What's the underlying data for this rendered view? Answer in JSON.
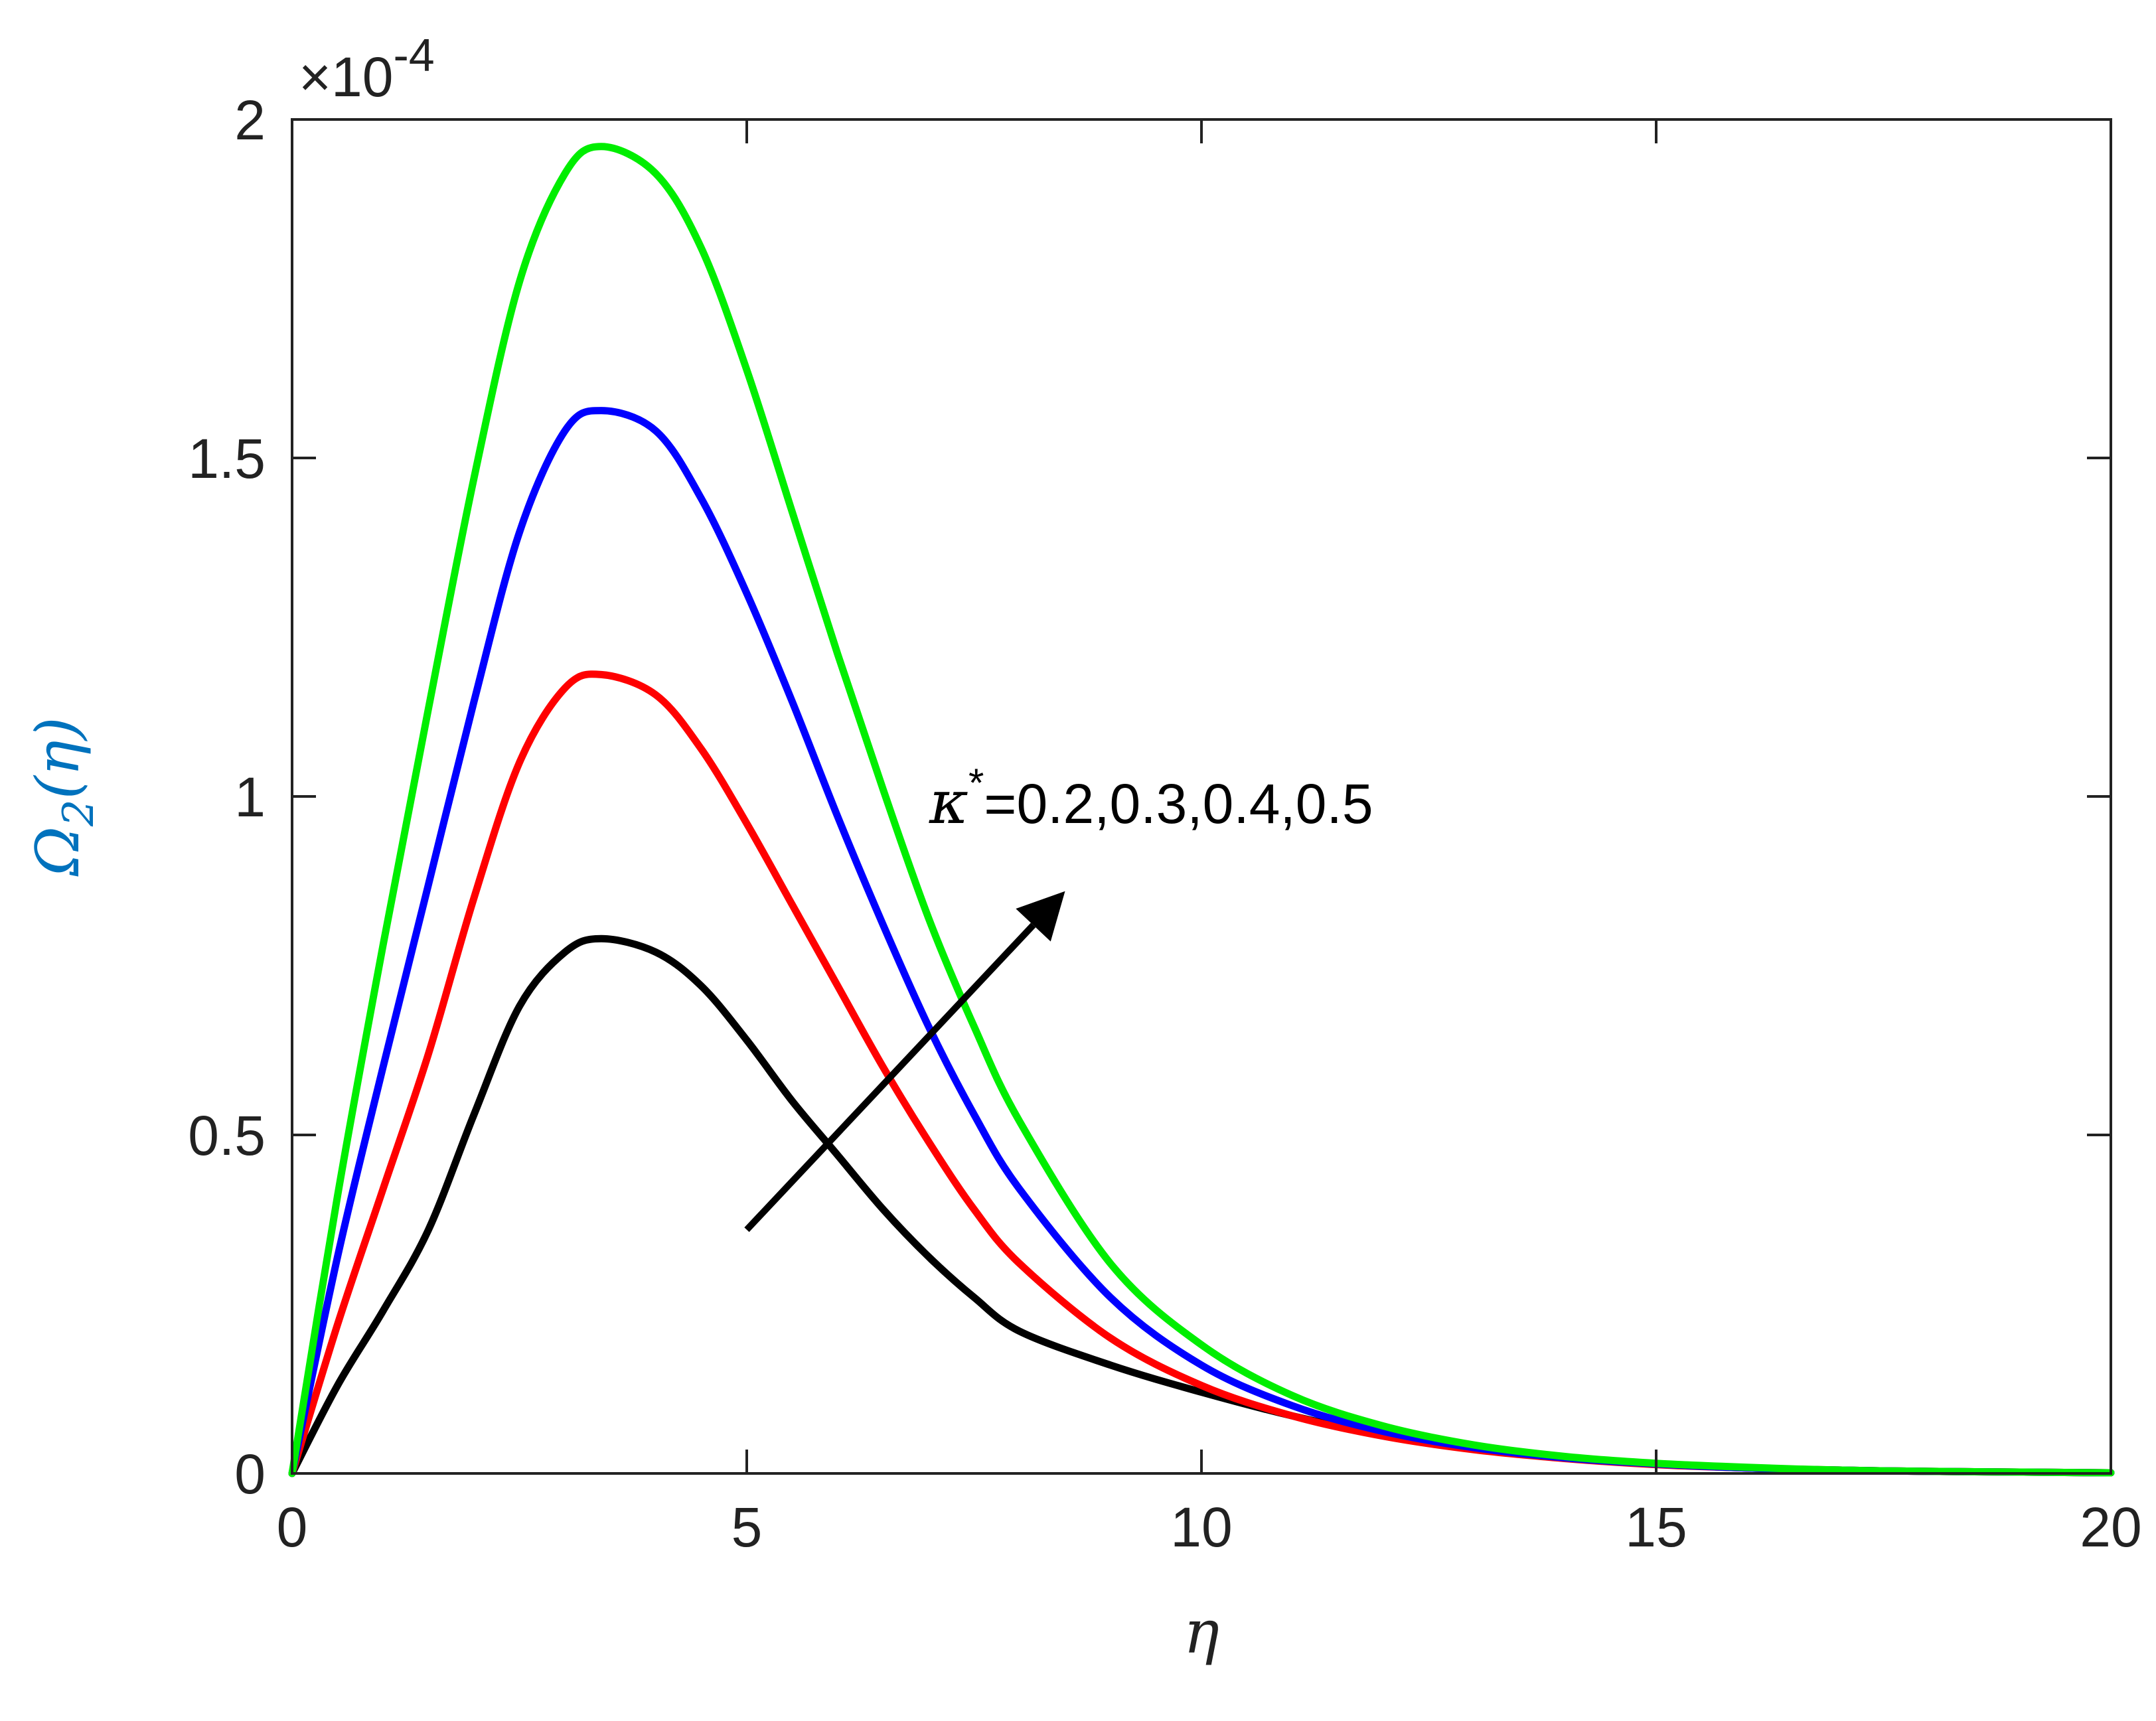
{
  "chart_data": {
    "type": "line",
    "xlabel": "η",
    "ylabel_main": "Ω",
    "ylabel_sub": "2",
    "ylabel_arg": "(η)",
    "y_multiplier": {
      "base": "×10",
      "exponent": "-4"
    },
    "xlim": [
      0,
      20
    ],
    "ylim": [
      0,
      2
    ],
    "xticks": [
      0,
      5,
      10,
      15,
      20
    ],
    "xtick_labels": [
      "0",
      "5",
      "10",
      "15",
      "20"
    ],
    "yticks": [
      0,
      0.5,
      1,
      1.5,
      2
    ],
    "ytick_labels": [
      "0",
      "0.5",
      "1",
      "1.5",
      "2"
    ],
    "grid": false,
    "annotation": {
      "symbol": "κ",
      "sup": "*",
      "text": "=0.2,0.3,0.4,0.5"
    },
    "x": [
      0,
      0.5,
      1,
      1.5,
      2,
      2.5,
      3,
      3.4,
      4,
      4.5,
      5,
      5.5,
      6,
      6.5,
      7,
      7.5,
      8,
      9,
      10,
      11,
      12,
      13,
      14,
      15,
      16,
      17,
      18,
      19,
      20
    ],
    "series": [
      {
        "color": "#000000",
        "values": [
          0,
          0.13,
          0.24,
          0.36,
          0.53,
          0.69,
          0.77,
          0.79,
          0.77,
          0.72,
          0.64,
          0.55,
          0.47,
          0.39,
          0.32,
          0.26,
          0.21,
          0.16,
          0.12,
          0.085,
          0.057,
          0.037,
          0.023,
          0.014,
          0.008,
          0.005,
          0.003,
          0.002,
          0.001
        ]
      },
      {
        "color": "#ff0000",
        "values": [
          0,
          0.22,
          0.42,
          0.62,
          0.85,
          1.05,
          1.16,
          1.18,
          1.15,
          1.07,
          0.96,
          0.84,
          0.72,
          0.6,
          0.49,
          0.39,
          0.31,
          0.2,
          0.13,
          0.085,
          0.055,
          0.035,
          0.022,
          0.013,
          0.008,
          0.005,
          0.003,
          0.002,
          0.001
        ]
      },
      {
        "color": "#0000ff",
        "values": [
          0,
          0.32,
          0.6,
          0.87,
          1.14,
          1.39,
          1.54,
          1.57,
          1.54,
          1.44,
          1.3,
          1.14,
          0.97,
          0.81,
          0.66,
          0.53,
          0.42,
          0.26,
          0.16,
          0.1,
          0.062,
          0.038,
          0.023,
          0.014,
          0.008,
          0.005,
          0.003,
          0.002,
          0.001
        ]
      },
      {
        "color": "#00ee00",
        "values": [
          0,
          0.41,
          0.78,
          1.13,
          1.47,
          1.76,
          1.92,
          1.96,
          1.92,
          1.81,
          1.63,
          1.42,
          1.21,
          1.01,
          0.82,
          0.66,
          0.52,
          0.31,
          0.19,
          0.115,
          0.07,
          0.042,
          0.025,
          0.015,
          0.009,
          0.005,
          0.003,
          0.002,
          0.001
        ]
      }
    ],
    "arrow": {
      "from": [
        5,
        0.36
      ],
      "to": [
        8.5,
        0.86
      ],
      "color": "#000000"
    }
  }
}
